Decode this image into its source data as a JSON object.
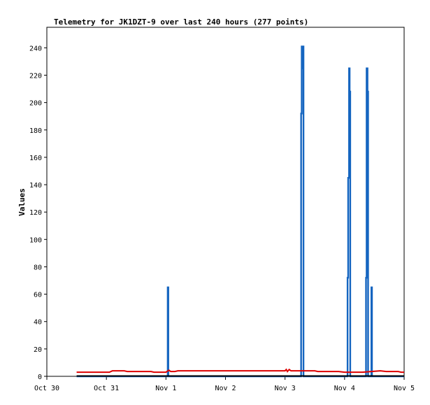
{
  "chart_data": {
    "type": "line",
    "title": "Telemetry for JK1DZT-9 over last 240 hours (277 points)",
    "ylabel": "Values",
    "xlabel": "",
    "ylim": [
      0,
      255
    ],
    "xlim": [
      0,
      6
    ],
    "y_ticks": [
      0,
      20,
      40,
      60,
      80,
      100,
      120,
      140,
      160,
      180,
      200,
      220,
      240
    ],
    "x_ticks": [
      {
        "x": 0,
        "label": "Oct 30"
      },
      {
        "x": 1,
        "label": "Oct 31"
      },
      {
        "x": 2,
        "label": "Nov 1"
      },
      {
        "x": 3,
        "label": "Nov 2"
      },
      {
        "x": 4,
        "label": "Nov 3"
      },
      {
        "x": 5,
        "label": "Nov 4"
      },
      {
        "x": 6,
        "label": "Nov 5"
      }
    ],
    "grid": false,
    "series": [
      {
        "color": "#1565c0",
        "style": "spikes",
        "points": [
          [
            0.5,
            0
          ],
          [
            1.92,
            0
          ],
          [
            2.02,
            0
          ],
          [
            2.03,
            65
          ],
          [
            2.04,
            0
          ],
          [
            2.1,
            0
          ],
          [
            4.26,
            0
          ],
          [
            4.27,
            192
          ],
          [
            4.28,
            241
          ],
          [
            4.29,
            225
          ],
          [
            4.3,
            241
          ],
          [
            4.31,
            0
          ],
          [
            5.04,
            0
          ],
          [
            5.05,
            72
          ],
          [
            5.06,
            145
          ],
          [
            5.075,
            225
          ],
          [
            5.085,
            208
          ],
          [
            5.095,
            0
          ],
          [
            5.35,
            0
          ],
          [
            5.36,
            72
          ],
          [
            5.37,
            225
          ],
          [
            5.385,
            208
          ],
          [
            5.395,
            0
          ],
          [
            5.44,
            0
          ],
          [
            5.45,
            65
          ],
          [
            5.46,
            0
          ],
          [
            6.0,
            0
          ]
        ]
      },
      {
        "color": "#dd0000",
        "style": "line",
        "points": [
          [
            0.5,
            3
          ],
          [
            1.05,
            3
          ],
          [
            1.1,
            4
          ],
          [
            1.3,
            4
          ],
          [
            1.35,
            3.5
          ],
          [
            1.75,
            3.5
          ],
          [
            1.8,
            3
          ],
          [
            2.0,
            3
          ],
          [
            2.05,
            4.5
          ],
          [
            2.08,
            3.5
          ],
          [
            2.15,
            3.5
          ],
          [
            2.2,
            4
          ],
          [
            4.0,
            4
          ],
          [
            4.02,
            5
          ],
          [
            4.04,
            3.5
          ],
          [
            4.07,
            5
          ],
          [
            4.1,
            4
          ],
          [
            4.2,
            4
          ],
          [
            4.5,
            4
          ],
          [
            4.55,
            3.5
          ],
          [
            4.9,
            3.5
          ],
          [
            5.0,
            3
          ],
          [
            5.3,
            3
          ],
          [
            5.45,
            3.5
          ],
          [
            5.6,
            4
          ],
          [
            5.7,
            3.5
          ],
          [
            5.9,
            3.5
          ],
          [
            5.95,
            3
          ],
          [
            6.0,
            3
          ]
        ]
      }
    ]
  }
}
